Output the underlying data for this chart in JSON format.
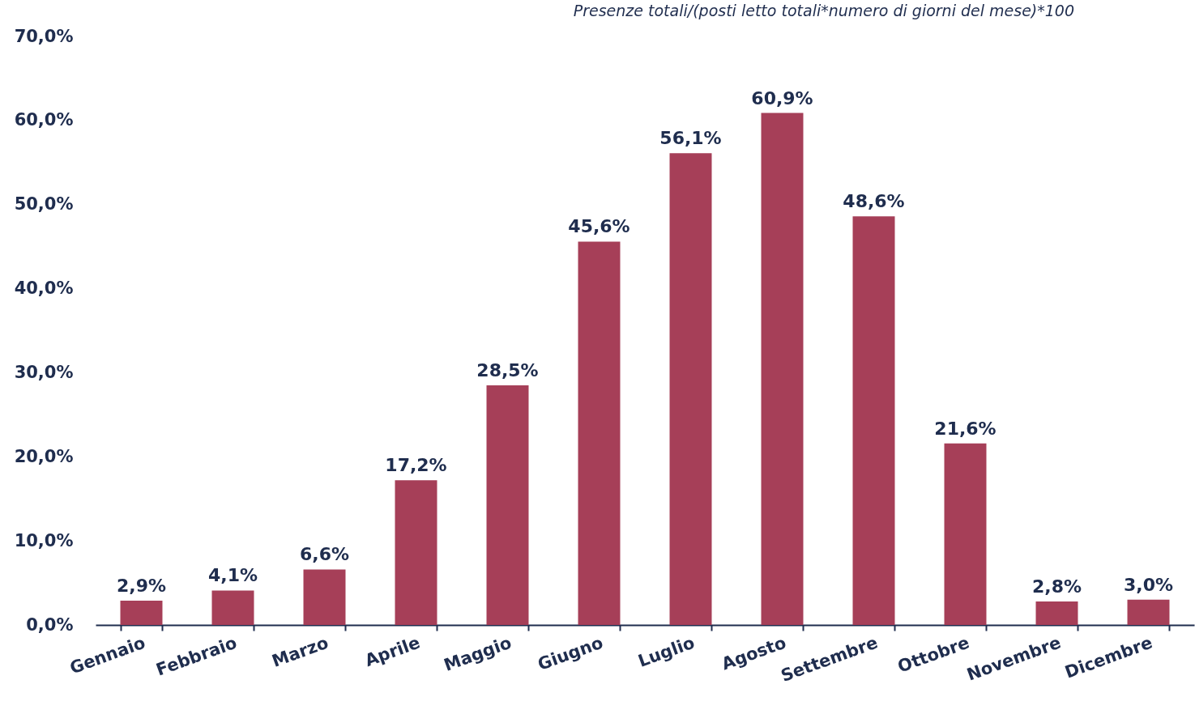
{
  "chart_data": {
    "type": "bar",
    "title": "Presenze totali/(posti letto totali*numero di giorni del mese)*100",
    "categories": [
      "Gennaio",
      "Febbraio",
      "Marzo",
      "Aprile",
      "Maggio",
      "Giugno",
      "Luglio",
      "Agosto",
      "Settembre",
      "Ottobre",
      "Novembre",
      "Dicembre"
    ],
    "values": [
      2.9,
      4.1,
      6.6,
      17.2,
      28.5,
      45.6,
      56.1,
      60.9,
      48.6,
      21.6,
      2.8,
      3.0
    ],
    "value_labels": [
      "2,9%",
      "4,1%",
      "6,6%",
      "17,2%",
      "28,5%",
      "45,6%",
      "56,1%",
      "60,9%",
      "48,6%",
      "21,6%",
      "2,8%",
      "3,0%"
    ],
    "color": "#a63f58",
    "ylim": [
      0,
      70
    ],
    "yticks": [
      {
        "value": 0,
        "label": "0,0%"
      },
      {
        "value": 10,
        "label": "10,0%"
      },
      {
        "value": 20,
        "label": "20,0%"
      },
      {
        "value": 30,
        "label": "30,0%"
      },
      {
        "value": 40,
        "label": "40,0%"
      },
      {
        "value": 50,
        "label": "50,0%"
      },
      {
        "value": 60,
        "label": "60,0%"
      },
      {
        "value": 70,
        "label": "70,0%"
      }
    ],
    "grid": false
  }
}
